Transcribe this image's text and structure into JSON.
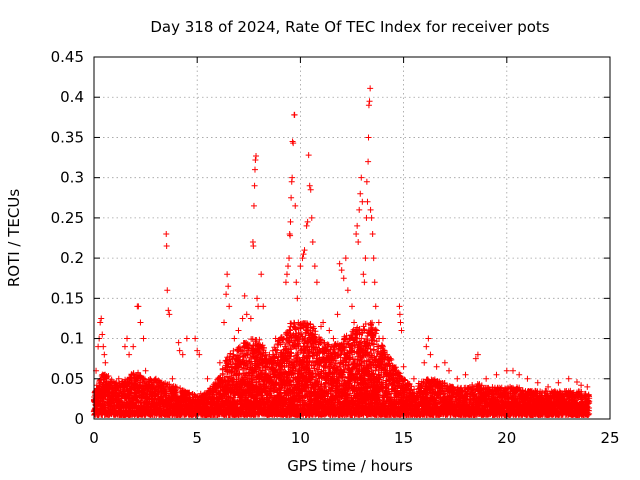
{
  "chart_data": {
    "type": "scatter",
    "title": "Day 318 of 2024, Rate Of TEC Index for receiver pots",
    "xlabel": "GPS time / hours",
    "ylabel": "ROTI / TECUs",
    "xlim": [
      0,
      25
    ],
    "ylim": [
      0,
      0.45
    ],
    "xticks": [
      0,
      5,
      10,
      15,
      20,
      25
    ],
    "yticks": [
      0,
      0.05,
      0.1,
      0.15,
      0.2,
      0.25,
      0.3,
      0.35,
      0.4,
      0.45
    ],
    "grid": true,
    "marker": "plus",
    "color": "#ff0000",
    "series": [
      {
        "name": "ROTI",
        "points": [
          [
            0.1,
            0.06
          ],
          [
            0.2,
            0.09
          ],
          [
            0.25,
            0.1
          ],
          [
            0.3,
            0.12
          ],
          [
            0.35,
            0.125
          ],
          [
            0.4,
            0.105
          ],
          [
            0.45,
            0.09
          ],
          [
            0.5,
            0.08
          ],
          [
            0.55,
            0.07
          ],
          [
            0.6,
            0.05
          ],
          [
            1.2,
            0.05
          ],
          [
            1.5,
            0.09
          ],
          [
            1.6,
            0.1
          ],
          [
            1.7,
            0.08
          ],
          [
            1.9,
            0.09
          ],
          [
            2.1,
            0.14
          ],
          [
            2.15,
            0.14
          ],
          [
            2.25,
            0.12
          ],
          [
            2.4,
            0.1
          ],
          [
            2.5,
            0.06
          ],
          [
            3.0,
            0.05
          ],
          [
            3.5,
            0.23
          ],
          [
            3.52,
            0.215
          ],
          [
            3.55,
            0.16
          ],
          [
            3.6,
            0.135
          ],
          [
            3.65,
            0.13
          ],
          [
            3.8,
            0.05
          ],
          [
            4.1,
            0.095
          ],
          [
            4.15,
            0.085
          ],
          [
            4.3,
            0.08
          ],
          [
            4.5,
            0.1
          ],
          [
            4.9,
            0.1
          ],
          [
            5.0,
            0.085
          ],
          [
            5.1,
            0.08
          ],
          [
            5.5,
            0.05
          ],
          [
            6.1,
            0.07
          ],
          [
            6.3,
            0.12
          ],
          [
            6.4,
            0.155
          ],
          [
            6.45,
            0.18
          ],
          [
            6.5,
            0.165
          ],
          [
            6.55,
            0.14
          ],
          [
            6.8,
            0.1
          ],
          [
            7.0,
            0.11
          ],
          [
            7.2,
            0.125
          ],
          [
            7.3,
            0.153
          ],
          [
            7.4,
            0.13
          ],
          [
            7.6,
            0.125
          ],
          [
            7.7,
            0.22
          ],
          [
            7.72,
            0.215
          ],
          [
            7.75,
            0.265
          ],
          [
            7.78,
            0.29
          ],
          [
            7.8,
            0.31
          ],
          [
            7.82,
            0.322
          ],
          [
            7.85,
            0.327
          ],
          [
            7.9,
            0.15
          ],
          [
            7.95,
            0.14
          ],
          [
            8.1,
            0.18
          ],
          [
            8.2,
            0.14
          ],
          [
            8.5,
            0.08
          ],
          [
            8.8,
            0.1
          ],
          [
            9.1,
            0.1
          ],
          [
            9.25,
            0.09
          ],
          [
            9.3,
            0.17
          ],
          [
            9.35,
            0.18
          ],
          [
            9.4,
            0.19
          ],
          [
            9.45,
            0.2
          ],
          [
            9.48,
            0.23
          ],
          [
            9.5,
            0.228
          ],
          [
            9.52,
            0.245
          ],
          [
            9.55,
            0.275
          ],
          [
            9.58,
            0.295
          ],
          [
            9.6,
            0.3
          ],
          [
            9.62,
            0.345
          ],
          [
            9.65,
            0.343
          ],
          [
            9.7,
            0.378
          ],
          [
            9.72,
            0.378
          ],
          [
            9.75,
            0.265
          ],
          [
            9.8,
            0.17
          ],
          [
            9.85,
            0.15
          ],
          [
            9.9,
            0.12
          ],
          [
            10.0,
            0.19
          ],
          [
            10.1,
            0.2
          ],
          [
            10.15,
            0.205
          ],
          [
            10.2,
            0.21
          ],
          [
            10.3,
            0.24
          ],
          [
            10.35,
            0.245
          ],
          [
            10.4,
            0.328
          ],
          [
            10.45,
            0.29
          ],
          [
            10.5,
            0.285
          ],
          [
            10.55,
            0.25
          ],
          [
            10.6,
            0.22
          ],
          [
            10.7,
            0.19
          ],
          [
            10.8,
            0.17
          ],
          [
            11.0,
            0.115
          ],
          [
            11.1,
            0.12
          ],
          [
            11.4,
            0.11
          ],
          [
            11.6,
            0.1
          ],
          [
            11.8,
            0.13
          ],
          [
            11.9,
            0.193
          ],
          [
            12.0,
            0.185
          ],
          [
            12.1,
            0.175
          ],
          [
            12.2,
            0.2
          ],
          [
            12.3,
            0.16
          ],
          [
            12.5,
            0.14
          ],
          [
            12.6,
            0.12
          ],
          [
            12.7,
            0.23
          ],
          [
            12.75,
            0.24
          ],
          [
            12.8,
            0.22
          ],
          [
            12.85,
            0.26
          ],
          [
            12.9,
            0.28
          ],
          [
            12.95,
            0.3
          ],
          [
            13.0,
            0.27
          ],
          [
            13.05,
            0.18
          ],
          [
            13.1,
            0.17
          ],
          [
            13.15,
            0.2
          ],
          [
            13.2,
            0.25
          ],
          [
            13.22,
            0.295
          ],
          [
            13.25,
            0.27
          ],
          [
            13.28,
            0.32
          ],
          [
            13.3,
            0.35
          ],
          [
            13.32,
            0.39
          ],
          [
            13.35,
            0.395
          ],
          [
            13.38,
            0.411
          ],
          [
            13.4,
            0.26
          ],
          [
            13.45,
            0.25
          ],
          [
            13.5,
            0.23
          ],
          [
            13.55,
            0.2
          ],
          [
            13.6,
            0.17
          ],
          [
            13.65,
            0.14
          ],
          [
            13.7,
            0.11
          ],
          [
            13.8,
            0.12
          ],
          [
            14.0,
            0.1
          ],
          [
            14.2,
            0.08
          ],
          [
            14.8,
            0.14
          ],
          [
            14.82,
            0.13
          ],
          [
            14.85,
            0.12
          ],
          [
            14.9,
            0.11
          ],
          [
            15.0,
            0.065
          ],
          [
            15.5,
            0.05
          ],
          [
            16.0,
            0.07
          ],
          [
            16.1,
            0.09
          ],
          [
            16.2,
            0.1
          ],
          [
            16.3,
            0.08
          ],
          [
            16.6,
            0.065
          ],
          [
            17.0,
            0.07
          ],
          [
            17.2,
            0.06
          ],
          [
            17.6,
            0.05
          ],
          [
            18.0,
            0.055
          ],
          [
            18.5,
            0.075
          ],
          [
            18.6,
            0.08
          ],
          [
            19.0,
            0.05
          ],
          [
            19.5,
            0.055
          ],
          [
            20.0,
            0.06
          ],
          [
            20.3,
            0.06
          ],
          [
            20.6,
            0.055
          ],
          [
            21.0,
            0.05
          ],
          [
            21.5,
            0.045
          ],
          [
            22.0,
            0.04
          ],
          [
            22.5,
            0.045
          ],
          [
            23.0,
            0.05
          ],
          [
            23.4,
            0.046
          ],
          [
            23.6,
            0.042
          ],
          [
            23.9,
            0.04
          ]
        ],
        "baseline_band": [
          [
            0.0,
            0.035
          ],
          [
            0.5,
            0.06
          ],
          [
            1.0,
            0.045
          ],
          [
            1.5,
            0.05
          ],
          [
            2.0,
            0.06
          ],
          [
            2.5,
            0.05
          ],
          [
            3.0,
            0.05
          ],
          [
            3.5,
            0.045
          ],
          [
            4.0,
            0.04
          ],
          [
            4.5,
            0.035
          ],
          [
            5.0,
            0.03
          ],
          [
            5.5,
            0.035
          ],
          [
            6.0,
            0.05
          ],
          [
            6.5,
            0.08
          ],
          [
            7.0,
            0.09
          ],
          [
            7.5,
            0.1
          ],
          [
            8.0,
            0.1
          ],
          [
            8.5,
            0.08
          ],
          [
            9.0,
            0.1
          ],
          [
            9.5,
            0.12
          ],
          [
            10.0,
            0.12
          ],
          [
            10.5,
            0.12
          ],
          [
            11.0,
            0.1
          ],
          [
            11.5,
            0.09
          ],
          [
            12.0,
            0.1
          ],
          [
            12.5,
            0.11
          ],
          [
            13.0,
            0.12
          ],
          [
            13.5,
            0.12
          ],
          [
            14.0,
            0.09
          ],
          [
            14.5,
            0.07
          ],
          [
            15.0,
            0.05
          ],
          [
            15.5,
            0.04
          ],
          [
            16.0,
            0.05
          ],
          [
            16.5,
            0.05
          ],
          [
            17.0,
            0.045
          ],
          [
            17.5,
            0.04
          ],
          [
            18.0,
            0.04
          ],
          [
            18.5,
            0.045
          ],
          [
            19.0,
            0.04
          ],
          [
            19.5,
            0.04
          ],
          [
            20.0,
            0.04
          ],
          [
            20.5,
            0.04
          ],
          [
            21.0,
            0.035
          ],
          [
            21.5,
            0.035
          ],
          [
            22.0,
            0.035
          ],
          [
            22.5,
            0.035
          ],
          [
            23.0,
            0.035
          ],
          [
            23.5,
            0.035
          ],
          [
            24.0,
            0.03
          ]
        ],
        "min_floor": 0.005
      }
    ]
  }
}
